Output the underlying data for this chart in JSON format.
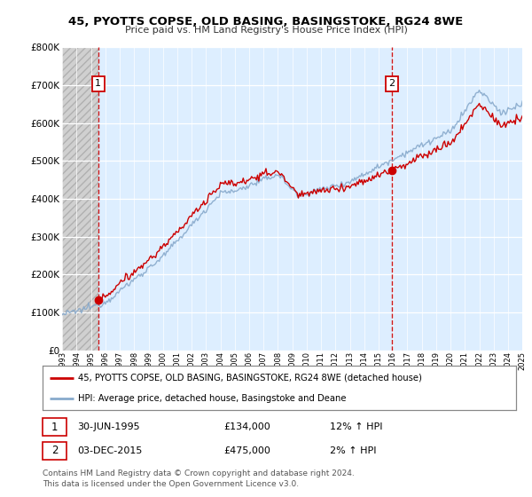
{
  "title": "45, PYOTTS COPSE, OLD BASING, BASINGSTOKE, RG24 8WE",
  "subtitle": "Price paid vs. HM Land Registry's House Price Index (HPI)",
  "legend_line1": "45, PYOTTS COPSE, OLD BASING, BASINGSTOKE, RG24 8WE (detached house)",
  "legend_line2": "HPI: Average price, detached house, Basingstoke and Deane",
  "annotation1_label": "1",
  "annotation1_date": "30-JUN-1995",
  "annotation1_price": "£134,000",
  "annotation1_hpi": "12% ↑ HPI",
  "annotation2_label": "2",
  "annotation2_date": "03-DEC-2015",
  "annotation2_price": "£475,000",
  "annotation2_hpi": "2% ↑ HPI",
  "footer": "Contains HM Land Registry data © Crown copyright and database right 2024.\nThis data is licensed under the Open Government Licence v3.0.",
  "sale1_x": 1995.5,
  "sale1_y": 134000,
  "sale2_x": 2015.92,
  "sale2_y": 475000,
  "ylim": [
    0,
    800000
  ],
  "xlim_start": 1993,
  "xlim_end": 2025,
  "hatch_bg_color": "#d0d0d0",
  "plot_bg_color": "#ddeeff",
  "grid_color": "#ffffff",
  "red_color": "#cc0000",
  "blue_color": "#88aacc",
  "vline_color": "#cc0000",
  "title_fontsize": 9.5,
  "subtitle_fontsize": 8
}
